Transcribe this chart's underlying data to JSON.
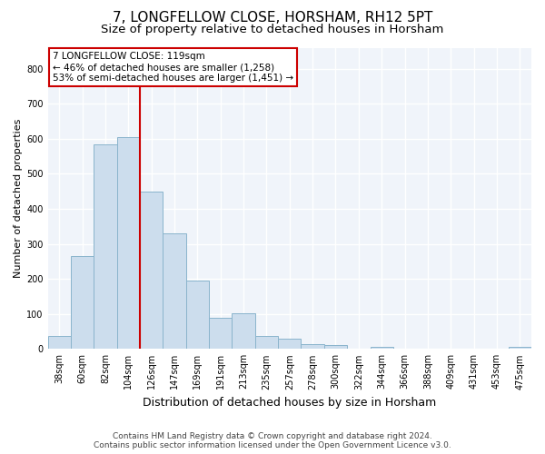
{
  "title": "7, LONGFELLOW CLOSE, HORSHAM, RH12 5PT",
  "subtitle": "Size of property relative to detached houses in Horsham",
  "xlabel": "Distribution of detached houses by size in Horsham",
  "ylabel": "Number of detached properties",
  "categories": [
    "38sqm",
    "60sqm",
    "82sqm",
    "104sqm",
    "126sqm",
    "147sqm",
    "169sqm",
    "191sqm",
    "213sqm",
    "235sqm",
    "257sqm",
    "278sqm",
    "300sqm",
    "322sqm",
    "344sqm",
    "366sqm",
    "388sqm",
    "409sqm",
    "431sqm",
    "453sqm",
    "475sqm"
  ],
  "values": [
    37,
    265,
    585,
    605,
    450,
    330,
    195,
    90,
    103,
    37,
    30,
    15,
    10,
    0,
    5,
    0,
    0,
    0,
    0,
    0,
    5
  ],
  "bar_color": "#ccdded",
  "bar_edge_color": "#8ab4cc",
  "red_line_x": 3.5,
  "red_line_label": "7 LONGFELLOW CLOSE: 119sqm",
  "annotation_line1": "← 46% of detached houses are smaller (1,258)",
  "annotation_line2": "53% of semi-detached houses are larger (1,451) →",
  "annotation_box_color": "#ffffff",
  "annotation_box_edge_color": "#cc0000",
  "ylim": [
    0,
    860
  ],
  "yticks": [
    0,
    100,
    200,
    300,
    400,
    500,
    600,
    700,
    800
  ],
  "footer_line1": "Contains HM Land Registry data © Crown copyright and database right 2024.",
  "footer_line2": "Contains public sector information licensed under the Open Government Licence v3.0.",
  "background_color": "#ffffff",
  "plot_background_color": "#f0f4fa",
  "grid_color": "#ffffff",
  "title_fontsize": 11,
  "subtitle_fontsize": 9.5,
  "xlabel_fontsize": 9,
  "ylabel_fontsize": 8,
  "tick_fontsize": 7,
  "annotation_fontsize": 7.5,
  "footer_fontsize": 6.5
}
